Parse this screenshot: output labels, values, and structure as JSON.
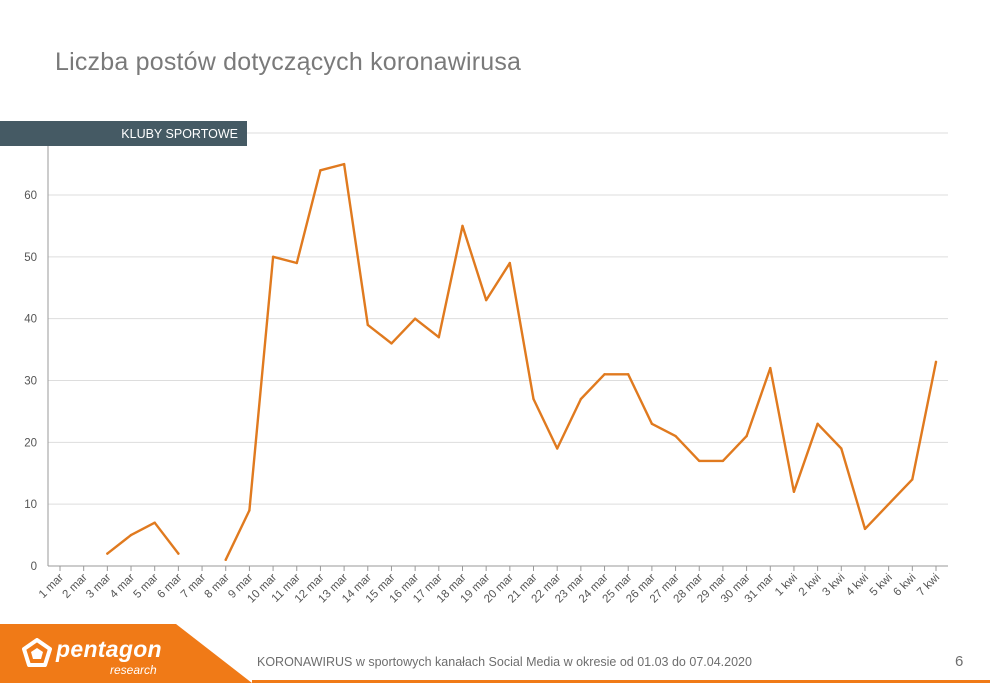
{
  "page": {
    "title": "Liczba postów dotyczących koronawirusa",
    "footer_text": "KORONAWIRUS w sportowych kanałach Social Media w okresie od 01.03 do 07.04.2020",
    "page_number": "6"
  },
  "logo": {
    "name": "pentagon",
    "subtitle": "research",
    "icon": "pentagon-logo-icon"
  },
  "colors": {
    "line": "#e07a1f",
    "tab_bg": "#455a64",
    "footer_accent": "#f07a17",
    "grid": "#dddddd",
    "axis": "#999999"
  },
  "chart_data": {
    "type": "line",
    "series_tab": "KLUBY SPORTOWE",
    "categories": [
      "1 mar",
      "2 mar",
      "3 mar",
      "4 mar",
      "5 mar",
      "6 mar",
      "7 mar",
      "8 mar",
      "9 mar",
      "10 mar",
      "11 mar",
      "12 mar",
      "13 mar",
      "14 mar",
      "15 mar",
      "16 mar",
      "17 mar",
      "18 mar",
      "19 mar",
      "20 mar",
      "21 mar",
      "22 mar",
      "23 mar",
      "24 mar",
      "25 mar",
      "26 mar",
      "27 mar",
      "28 mar",
      "29 mar",
      "30 mar",
      "31 mar",
      "1 kwi",
      "2 kwi",
      "3 kwi",
      "4 kwi",
      "5 kwi",
      "6 kwi",
      "7 kwi"
    ],
    "values": [
      null,
      null,
      2,
      5,
      7,
      2,
      null,
      1,
      9,
      50,
      49,
      64,
      65,
      39,
      36,
      40,
      37,
      55,
      43,
      49,
      27,
      19,
      27,
      31,
      31,
      23,
      21,
      17,
      17,
      21,
      32,
      12,
      23,
      19,
      6,
      10,
      14,
      33
    ],
    "y_ticks": [
      0,
      10,
      20,
      30,
      40,
      50,
      60
    ],
    "ylim": [
      0,
      70
    ],
    "grid": true,
    "legend": "top-left tab"
  }
}
